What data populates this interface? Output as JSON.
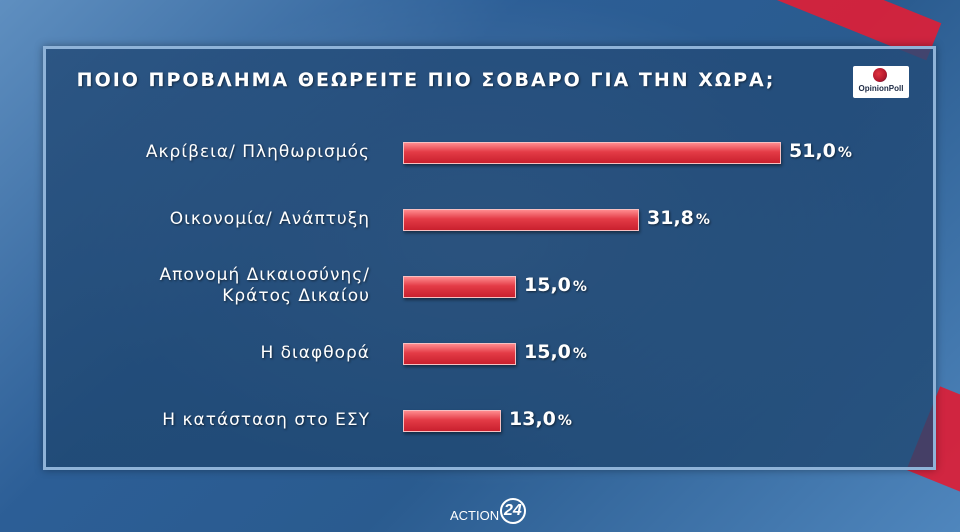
{
  "chart_data": {
    "type": "bar",
    "title": "ΠΟΙΟ ΠΡΟΒΛΗΜΑ ΘΕΩΡΕΙΤΕ ΠΙΟ ΣΟΒΑΡΟ ΓΙΑ ΤΗΝ ΧΩΡΑ;",
    "orientation": "horizontal",
    "categories": [
      "Ακρίβεια/ Πληθωρισμός",
      "Οικονομία/ Ανάπτυξη",
      "Απονομή Δικαιοσύνης/\nΚράτος Δικαίου",
      "Η διαφθορά",
      "Η κατάσταση στο ΕΣΥ"
    ],
    "values": [
      51.0,
      31.8,
      15.0,
      15.0,
      13.0
    ],
    "value_labels": [
      "51,0",
      "31,8",
      "15,0",
      "15,0",
      "13,0"
    ],
    "unit": "%",
    "xlim": [
      0,
      51.0
    ],
    "bar_color": "#e33b46"
  },
  "logo": {
    "text": "OpinionPoll"
  },
  "footer": {
    "brand": "ACTION",
    "number": "24"
  }
}
